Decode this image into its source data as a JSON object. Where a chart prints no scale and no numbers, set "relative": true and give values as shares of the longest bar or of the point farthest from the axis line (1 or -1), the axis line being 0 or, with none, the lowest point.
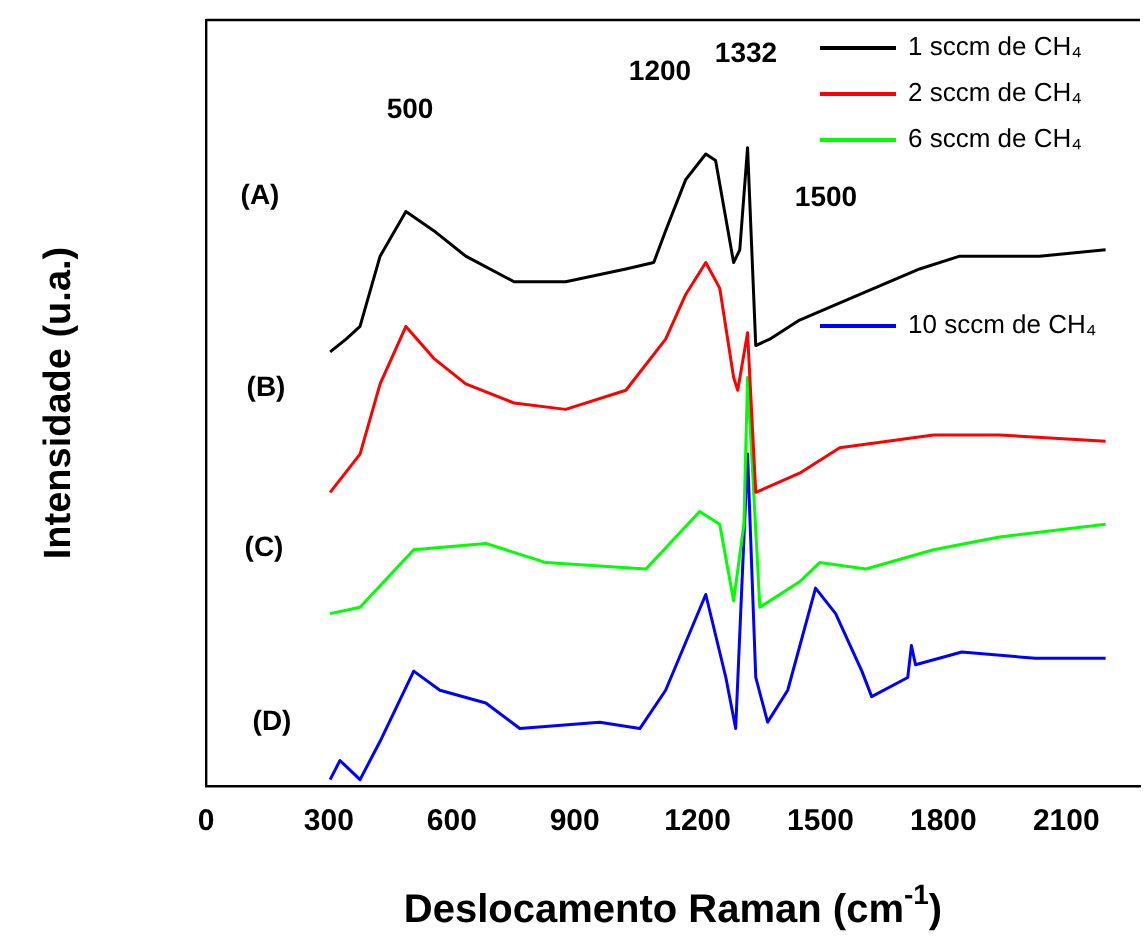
{
  "chart_data": {
    "type": "line",
    "xlabel": "Deslocamento Raman (cm$^{-1}$)",
    "ylabel": "Intensidade (u.a.)",
    "relative": true,
    "xlim": [
      0,
      2280
    ],
    "xticks": [
      0,
      300,
      600,
      900,
      1200,
      1500,
      1800,
      2100
    ],
    "grid": false,
    "legend": "top right",
    "marker": "none",
    "line_style": "solid",
    "series": [
      {
        "name": "1 sccm de CH₄",
        "color": "#000000",
        "x": [
          303,
          342,
          376,
          425,
          488,
          556,
          634,
          752,
          878,
          1025,
          1093,
          1122,
          1171,
          1220,
          1244,
          1288,
          1303,
          1322,
          1342,
          1376,
          1449,
          1596,
          1742,
          1840,
          2035,
          2196
        ],
        "values": [
          0.68,
          0.7,
          0.72,
          0.83,
          0.9,
          0.87,
          0.83,
          0.79,
          0.79,
          0.81,
          0.82,
          0.87,
          0.95,
          0.99,
          0.98,
          0.82,
          0.84,
          1.0,
          0.69,
          0.7,
          0.73,
          0.77,
          0.81,
          0.83,
          0.83,
          0.84
        ]
      },
      {
        "name": "2 sccm de CH₄",
        "color": "#ff0000",
        "x": [
          303,
          376,
          425,
          488,
          556,
          634,
          752,
          878,
          1025,
          1122,
          1171,
          1220,
          1254,
          1288,
          1298,
          1322,
          1342,
          1449,
          1547,
          1776,
          1937,
          2196
        ],
        "values": [
          0.46,
          0.52,
          0.63,
          0.72,
          0.67,
          0.63,
          0.6,
          0.59,
          0.62,
          0.7,
          0.77,
          0.82,
          0.78,
          0.64,
          0.62,
          0.71,
          0.46,
          0.49,
          0.53,
          0.55,
          0.55,
          0.54
        ]
      },
      {
        "name": "6 sccm de CH₄",
        "color": "#00ff00",
        "x": [
          303,
          376,
          507,
          683,
          830,
          1074,
          1205,
          1254,
          1288,
          1313,
          1322,
          1352,
          1449,
          1498,
          1611,
          1776,
          1937,
          2196
        ],
        "values": [
          0.27,
          0.28,
          0.37,
          0.38,
          0.35,
          0.34,
          0.43,
          0.41,
          0.29,
          0.41,
          0.64,
          0.28,
          0.32,
          0.35,
          0.34,
          0.37,
          0.39,
          0.41
        ]
      },
      {
        "name": "10 sccm de CH₄",
        "color": "#0000ff",
        "x": [
          303,
          327,
          376,
          425,
          507,
          571,
          683,
          766,
          961,
          1059,
          1122,
          1220,
          1269,
          1293,
          1322,
          1342,
          1371,
          1420,
          1488,
          1537,
          1601,
          1625,
          1713,
          1722,
          1732,
          1845,
          2025,
          2196
        ],
        "values": [
          0.01,
          0.04,
          0.01,
          0.07,
          0.18,
          0.15,
          0.13,
          0.09,
          0.1,
          0.09,
          0.15,
          0.3,
          0.17,
          0.09,
          0.52,
          0.17,
          0.1,
          0.15,
          0.31,
          0.27,
          0.18,
          0.14,
          0.17,
          0.22,
          0.19,
          0.21,
          0.2,
          0.2
        ]
      }
    ],
    "annotations": [
      "500",
      "1200",
      "1332",
      "1500",
      "(A)",
      "(B)",
      "(C)",
      "(D)"
    ]
  }
}
